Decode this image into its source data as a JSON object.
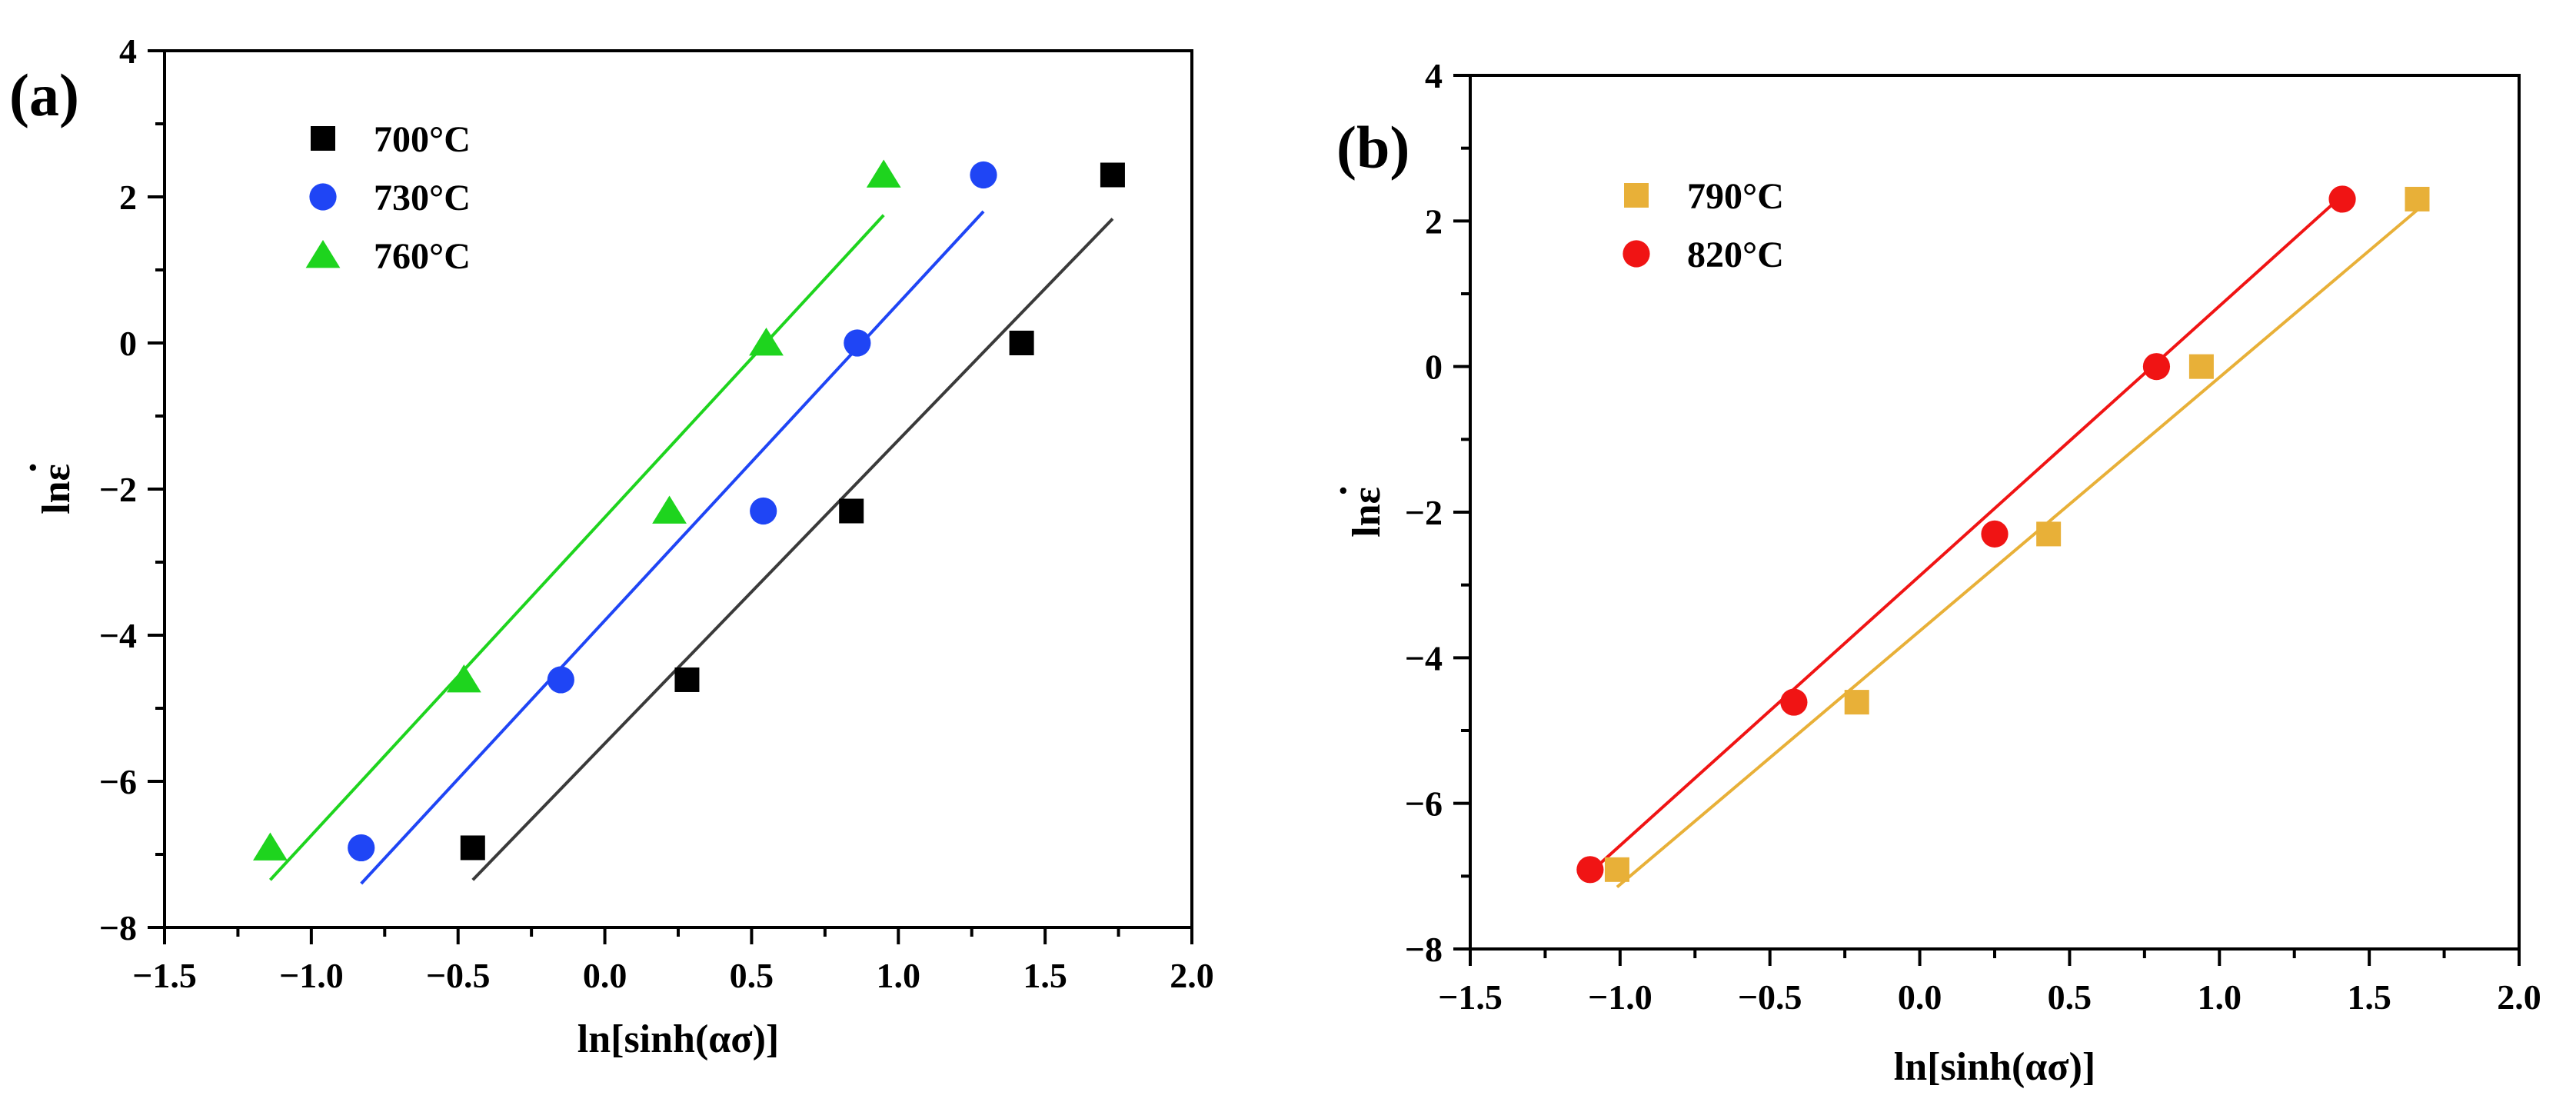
{
  "chart_data": [
    {
      "panel_label": "(a)",
      "type": "scatter",
      "xlabel": "ln[sinh(ασ)]",
      "ylabel": "lnε",
      "ylabel_dot": "·",
      "xlim": [
        -1.5,
        2.0
      ],
      "ylim": [
        -8,
        4
      ],
      "xticks": [
        -1.5,
        -1.0,
        -0.5,
        0.0,
        0.5,
        1.0,
        1.5,
        2.0
      ],
      "xtick_labels": [
        "−1.5",
        "−1.0",
        "−0.5",
        "0.0",
        "0.5",
        "1.0",
        "1.5",
        "2.0"
      ],
      "yticks": [
        -8,
        -6,
        -4,
        -2,
        0,
        2,
        4
      ],
      "ytick_labels": [
        "−8",
        "−6",
        "−4",
        "−2",
        "0",
        "2",
        "4"
      ],
      "legend_position": "top-left",
      "series": [
        {
          "name": "700°C",
          "marker": "square",
          "color": "#000000",
          "line_color": "#3a3a3a",
          "x": [
            -0.45,
            0.28,
            0.84,
            1.42,
            1.73
          ],
          "y": [
            -6.91,
            -4.61,
            -2.3,
            0.0,
            2.3
          ],
          "fit": [
            [
              -0.45,
              -7.35
            ],
            [
              1.73,
              1.7
            ]
          ]
        },
        {
          "name": "730°C",
          "marker": "circle",
          "color": "#1f45f5",
          "line_color": "#1f45f5",
          "x": [
            -0.83,
            -0.15,
            0.54,
            0.86,
            1.29
          ],
          "y": [
            -6.91,
            -4.61,
            -2.3,
            0.0,
            2.3
          ],
          "fit": [
            [
              -0.83,
              -7.4
            ],
            [
              1.29,
              1.8
            ]
          ]
        },
        {
          "name": "760°C",
          "marker": "triangle",
          "color": "#1ed41e",
          "line_color": "#1ed41e",
          "x": [
            -1.14,
            -0.48,
            0.22,
            0.55,
            0.95
          ],
          "y": [
            -6.91,
            -4.61,
            -2.3,
            0.0,
            2.3
          ],
          "fit": [
            [
              -1.14,
              -7.35
            ],
            [
              0.95,
              1.75
            ]
          ]
        }
      ]
    },
    {
      "panel_label": "(b)",
      "type": "scatter",
      "xlabel": "ln[sinh(ασ)]",
      "ylabel": "lnε",
      "ylabel_dot": "·",
      "xlim": [
        -1.5,
        2.0
      ],
      "ylim": [
        -8,
        4
      ],
      "xticks": [
        -1.5,
        -1.0,
        -0.5,
        0.0,
        0.5,
        1.0,
        1.5,
        2.0
      ],
      "xtick_labels": [
        "−1.5",
        "−1.0",
        "−0.5",
        "0.0",
        "0.5",
        "1.0",
        "1.5",
        "2.0"
      ],
      "yticks": [
        -8,
        -6,
        -4,
        -2,
        0,
        2,
        4
      ],
      "ytick_labels": [
        "−8",
        "−6",
        "−4",
        "−2",
        "0",
        "2",
        "4"
      ],
      "legend_position": "top-left",
      "series": [
        {
          "name": "790°C",
          "marker": "square",
          "color": "#e8b038",
          "line_color": "#e8b038",
          "x": [
            -1.01,
            -0.21,
            0.43,
            0.94,
            1.66
          ],
          "y": [
            -6.91,
            -4.61,
            -2.3,
            0.0,
            2.3
          ],
          "fit": [
            [
              -1.01,
              -7.15
            ],
            [
              1.66,
              2.15
            ]
          ]
        },
        {
          "name": "820°C",
          "marker": "circle",
          "color": "#f01414",
          "line_color": "#f01414",
          "x": [
            -1.1,
            -0.42,
            0.25,
            0.79,
            1.41
          ],
          "y": [
            -6.91,
            -4.61,
            -2.3,
            0.0,
            2.3
          ],
          "fit": [
            [
              -1.1,
              -6.95
            ],
            [
              1.41,
              2.35
            ]
          ]
        }
      ]
    }
  ]
}
